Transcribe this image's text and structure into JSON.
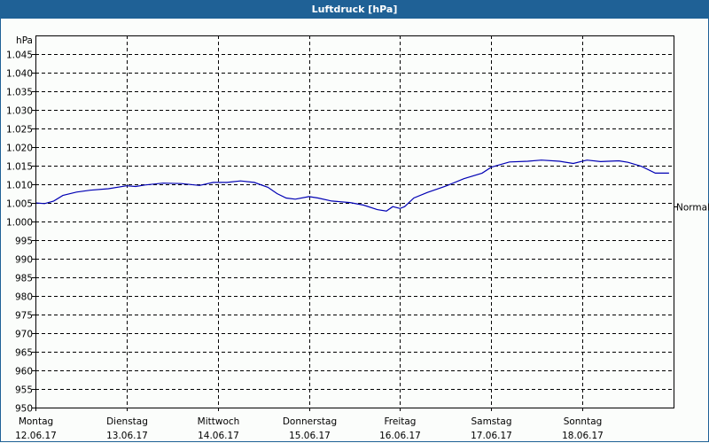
{
  "window": {
    "title": "Luftdruck [hPa]"
  },
  "chart_data": {
    "type": "line",
    "title": "Luftdruck [hPa]",
    "ylabel": "hPa",
    "xlabel": "",
    "ylim": [
      950,
      1050
    ],
    "yticks": [
      950,
      955,
      960,
      965,
      970,
      975,
      980,
      985,
      990,
      995,
      1000,
      1005,
      1010,
      1015,
      1020,
      1025,
      1030,
      1035,
      1040,
      1045
    ],
    "ytick_labels": [
      "950",
      "955",
      "960",
      "965",
      "970",
      "975",
      "980",
      "985",
      "990",
      "995",
      "1.000",
      "1.005",
      "1.010",
      "1.015",
      "1.020",
      "1.025",
      "1.030",
      "1.035",
      "1.040",
      "1.045"
    ],
    "categories": [
      {
        "day": "Montag",
        "date": "12.06.17"
      },
      {
        "day": "Dienstag",
        "date": "13.06.17"
      },
      {
        "day": "Mittwoch",
        "date": "14.06.17"
      },
      {
        "day": "Donnerstag",
        "date": "15.06.17"
      },
      {
        "day": "Freitag",
        "date": "16.06.17"
      },
      {
        "day": "Samstag",
        "date": "17.06.17"
      },
      {
        "day": "Sonntag",
        "date": "18.06.17"
      }
    ],
    "grid": true,
    "reference_line": {
      "label": "Normal",
      "value": 1004.1
    },
    "series": [
      {
        "name": "Luftdruck",
        "color": "#0000b4",
        "x_days": [
          0,
          0.1,
          0.2,
          0.3,
          0.45,
          0.6,
          0.8,
          1.0,
          1.1,
          1.2,
          1.4,
          1.6,
          1.8,
          1.95,
          2.1,
          2.25,
          2.4,
          2.55,
          2.65,
          2.75,
          2.85,
          3.0,
          3.1,
          3.25,
          3.45,
          3.6,
          3.75,
          3.85,
          3.92,
          4.0,
          4.05,
          4.15,
          4.3,
          4.5,
          4.7,
          4.9,
          5.0,
          5.2,
          5.4,
          5.55,
          5.75,
          5.9,
          6.05,
          6.2,
          6.4,
          6.5,
          6.65,
          6.8,
          6.95
        ],
        "values": [
          1005.0,
          1004.8,
          1005.5,
          1007.0,
          1007.9,
          1008.4,
          1008.8,
          1009.6,
          1009.4,
          1009.8,
          1010.3,
          1010.2,
          1009.7,
          1010.5,
          1010.5,
          1010.9,
          1010.5,
          1009.2,
          1007.5,
          1006.3,
          1006.0,
          1006.7,
          1006.3,
          1005.5,
          1005.1,
          1004.4,
          1003.2,
          1002.8,
          1004.0,
          1003.5,
          1004.0,
          1006.3,
          1007.8,
          1009.5,
          1011.5,
          1013.0,
          1014.6,
          1016.0,
          1016.2,
          1016.5,
          1016.2,
          1015.6,
          1016.5,
          1016.1,
          1016.3,
          1015.9,
          1014.8,
          1013.0,
          1013.0
        ]
      }
    ],
    "legend": null
  }
}
